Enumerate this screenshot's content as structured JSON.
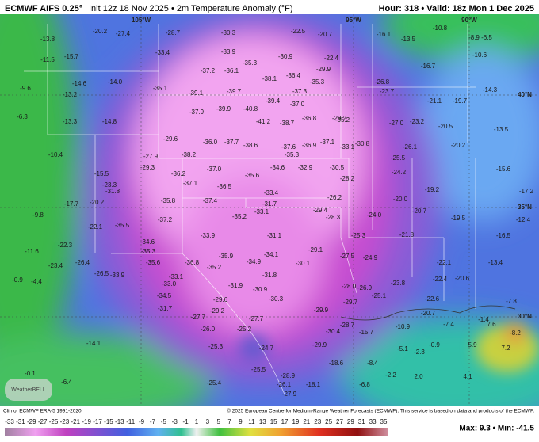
{
  "header": {
    "title": "ECMWF AIFS 0.25°",
    "subtitle": "Init 12z 18 Nov 2025 • 2m Temperature Anomaly (°F)",
    "valid": "Hour: 318 • Valid: 18z Mon 1 Dec 2025"
  },
  "map": {
    "geo_labels": [
      "105°W",
      "95°W",
      "90°W",
      "40°N",
      "35°N",
      "30°N"
    ],
    "values": [
      "-28.7",
      "-30.3",
      "-22.5",
      "-20.7",
      "-16.1",
      "-13.5",
      "-10.8",
      "-8.9",
      "-6.5",
      "-13.8",
      "-20.2",
      "-27.4",
      "-33.4",
      "-33.9",
      "-30.9",
      "-22.4",
      "-16.7",
      "-10.6",
      "-15.7",
      "-11.5",
      "-35.3",
      "-37.2",
      "-36.1",
      "-38.1",
      "-36.4",
      "-29.9",
      "-26.8",
      "-14.6",
      "-14.0",
      "-35.1",
      "-39.1",
      "-39.7",
      "-37.3",
      "-35.3",
      "-23.7",
      "-21.1",
      "-19.7",
      "-14.3",
      "-9.6",
      "-13.2",
      "-37.9",
      "-39.9",
      "-40.8",
      "-39.4",
      "-37.0",
      "-29.2",
      "-23.2",
      "-20.5",
      "-13.5",
      "-6.3",
      "-13.3",
      "-14.8",
      "-41.2",
      "-38.7",
      "-36.8",
      "-35.2",
      "-27.0",
      "-10.4",
      "-29.6",
      "-36.0",
      "-37.7",
      "-38.6",
      "-37.6",
      "-36.9",
      "-37.1",
      "-33.1",
      "-30.8",
      "-26.1",
      "-20.2",
      "-15.6",
      "-38.2",
      "-35.3",
      "-25.5",
      "-27.9",
      "-29.3",
      "-37.0",
      "-34.6",
      "-32.9",
      "-30.5",
      "-24.2",
      "-15.5",
      "-36.2",
      "-37.1",
      "-35.6",
      "-28.2",
      "-19.2",
      "-17.2",
      "-23.3",
      "-31.8",
      "-36.5",
      "-33.4",
      "-26.2",
      "-20.0",
      "-17.7",
      "-20.2",
      "-35.8",
      "-37.4",
      "-31.7",
      "-28.3",
      "-24.0",
      "-20.7",
      "-19.5",
      "-12.4",
      "-9.8",
      "-37.2",
      "-35.2",
      "-33.1",
      "-29.4",
      "-22.1",
      "-35.5",
      "-33.9",
      "-31.1",
      "-25.3",
      "-21.8",
      "-16.5",
      "-22.3",
      "-34.6",
      "-35.3",
      "-35.9",
      "-34.1",
      "-29.1",
      "-27.5",
      "-24.9",
      "-22.1",
      "-13.4",
      "-11.6",
      "-23.4",
      "-26.4",
      "-35.6",
      "-36.8",
      "-35.2",
      "-34.9",
      "-30.1",
      "-23.8",
      "-22.4",
      "-20.6",
      "-0.9",
      "-4.4",
      "-26.5",
      "-33.9",
      "-33.1",
      "-31.8",
      "-28.0",
      "-26.9",
      "-33.0",
      "-31.9",
      "-30.9",
      "-25.1",
      "-22.6",
      "-34.5",
      "-29.6",
      "-30.3",
      "-29.7",
      "-31.7",
      "-29.2",
      "-29.9",
      "-20.7",
      "-7.8",
      "-27.7",
      "-27.7",
      "-28.7",
      "-10.9",
      "-7.4",
      "-1.4",
      "-26.0",
      "-25.2",
      "-30.4",
      "-15.7",
      "-8.2",
      "-5.1",
      "-2.3",
      "-0.9",
      "5.9",
      "7.2",
      "7.6",
      "-14.1",
      "-25.3",
      "-24.7",
      "-29.9",
      "-18.6",
      "-8.4",
      "-0.1",
      "-25.5",
      "-2.2",
      "2.0",
      "4.1",
      "-6.4",
      "-26.1",
      "-28.9",
      "-25.4",
      "-18.1",
      "-6.8",
      "-27.9"
    ],
    "logo": "WeatherBELL"
  },
  "footer": {
    "climo": "Climo: ECMWF ERA-5 1991-2020",
    "copyright": "© 2025 European Centre for Medium-Range Weather Forecasts (ECMWF). This service is based on data and products of the ECMWF.",
    "colorbar_ticks": [
      "-33",
      "-31",
      "-29",
      "-27",
      "-25",
      "-23",
      "-21",
      "-19",
      "-17",
      "-15",
      "-13",
      "-11",
      "-9",
      "-7",
      "-5",
      "-3",
      "-1",
      "1",
      "3",
      "5",
      "7",
      "9",
      "11",
      "13",
      "15",
      "17",
      "19",
      "21",
      "23",
      "25",
      "27",
      "29",
      "31",
      "33",
      "35"
    ],
    "maxmin": "Max: 9.3 • Min: -41.5"
  }
}
